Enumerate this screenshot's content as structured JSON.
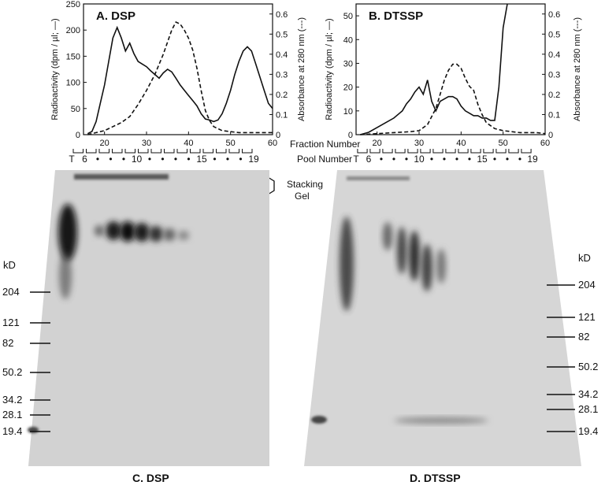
{
  "chart_data": [
    {
      "type": "line",
      "title": "A. DSP",
      "xlabel": "Fraction Number",
      "ylabel": "Radioactivity (dpm / µl; —)",
      "y2label": "Absorbance at 280 nm (---)",
      "xlim": [
        15,
        60
      ],
      "ylim": [
        0,
        250
      ],
      "y2lim": [
        0,
        0.65
      ],
      "xticks": [
        20,
        30,
        40,
        50,
        60
      ],
      "yticks": [
        0,
        50,
        100,
        150,
        200,
        250
      ],
      "y2ticks": [
        0,
        0.1,
        0.2,
        0.3,
        0.4,
        0.5,
        0.6
      ],
      "series": [
        {
          "axis": "left",
          "style": "solid",
          "x": [
            16,
            17,
            18,
            19,
            20,
            21,
            22,
            23,
            24,
            25,
            26,
            27,
            28,
            29,
            30,
            31,
            32,
            33,
            34,
            35,
            36,
            37,
            38,
            39,
            40,
            41,
            42,
            43,
            44,
            45,
            46,
            47,
            48,
            49,
            50,
            51,
            52,
            53,
            54,
            55,
            56,
            57,
            58,
            59,
            60
          ],
          "values": [
            2,
            6,
            25,
            60,
            95,
            140,
            185,
            205,
            185,
            160,
            175,
            155,
            140,
            135,
            130,
            122,
            115,
            108,
            118,
            125,
            120,
            108,
            95,
            85,
            75,
            65,
            55,
            40,
            30,
            28,
            25,
            28,
            40,
            60,
            85,
            115,
            140,
            160,
            168,
            160,
            135,
            110,
            85,
            60,
            50
          ]
        },
        {
          "axis": "right",
          "style": "dashed",
          "x": [
            16,
            18,
            20,
            22,
            24,
            26,
            28,
            30,
            32,
            34,
            36,
            37,
            38,
            39,
            40,
            41,
            42,
            43,
            44,
            45,
            46,
            48,
            50,
            52,
            54,
            56,
            58,
            60
          ],
          "values": [
            0,
            0.01,
            0.02,
            0.04,
            0.06,
            0.09,
            0.15,
            0.22,
            0.3,
            0.4,
            0.52,
            0.56,
            0.55,
            0.52,
            0.48,
            0.42,
            0.33,
            0.22,
            0.12,
            0.07,
            0.04,
            0.02,
            0.015,
            0.01,
            0.01,
            0.01,
            0.01,
            0.01
          ]
        }
      ]
    },
    {
      "type": "line",
      "title": "B. DTSSP",
      "xlabel": "Fraction Number",
      "ylabel": "Radioactivity (dpm / µl; —)",
      "y2label": "Absorbance at 280 nm (---)",
      "xlim": [
        15,
        60
      ],
      "ylim": [
        0,
        55
      ],
      "y2lim": [
        0,
        0.65
      ],
      "xticks": [
        20,
        30,
        40,
        50,
        60
      ],
      "yticks": [
        0,
        10,
        20,
        30,
        40,
        50
      ],
      "y2ticks": [
        0,
        0.1,
        0.2,
        0.3,
        0.4,
        0.5,
        0.6
      ],
      "series": [
        {
          "axis": "left",
          "style": "solid",
          "x": [
            16,
            18,
            20,
            22,
            24,
            26,
            27,
            28,
            29,
            30,
            31,
            32,
            33,
            34,
            35,
            36,
            37,
            38,
            39,
            40,
            41,
            42,
            43,
            44,
            45,
            46,
            47,
            48,
            49,
            50,
            51
          ],
          "values": [
            0,
            1,
            3,
            5,
            7,
            10,
            13,
            15,
            18,
            20,
            17,
            23,
            14,
            10,
            14,
            15,
            16,
            16,
            15,
            12,
            10,
            9,
            8,
            8,
            7,
            7,
            6,
            6,
            20,
            45,
            60
          ]
        },
        {
          "axis": "right",
          "style": "dashed",
          "x": [
            16,
            20,
            24,
            28,
            30,
            32,
            34,
            35,
            36,
            37,
            38,
            39,
            40,
            41,
            42,
            43,
            44,
            45,
            46,
            48,
            50,
            52,
            54,
            56,
            58,
            60
          ],
          "values": [
            0,
            0.005,
            0.01,
            0.015,
            0.02,
            0.05,
            0.13,
            0.2,
            0.27,
            0.32,
            0.35,
            0.35,
            0.33,
            0.28,
            0.24,
            0.22,
            0.15,
            0.1,
            0.06,
            0.03,
            0.02,
            0.015,
            0.01,
            0.01,
            0.01,
            0.005
          ]
        }
      ]
    }
  ],
  "labels": {
    "fraction_number": "Fraction Number",
    "pool_number": "Pool Number",
    "stacking_gel": [
      "Stacking",
      "Gel"
    ],
    "kd_left": "kD",
    "kd_right": "kD",
    "caption_c": "C. DSP",
    "caption_d": "D. DTSSP"
  },
  "pools_left": [
    "T",
    "6",
    "•",
    "•",
    "•",
    "10",
    "•",
    "•",
    "•",
    "•",
    "15",
    "•",
    "•",
    "•",
    "19"
  ],
  "pools_right": [
    "T",
    "6",
    "•",
    "•",
    "•",
    "10",
    "•",
    "•",
    "•",
    "•",
    "15",
    "•",
    "•",
    "•",
    "19"
  ],
  "markers_left": [
    "204",
    "121",
    "82",
    "50.2",
    "34.2",
    "28.1",
    "19.4"
  ],
  "markers_right": [
    "204",
    "121",
    "82",
    "50.2",
    "34.2",
    "28.1",
    "19.4"
  ]
}
